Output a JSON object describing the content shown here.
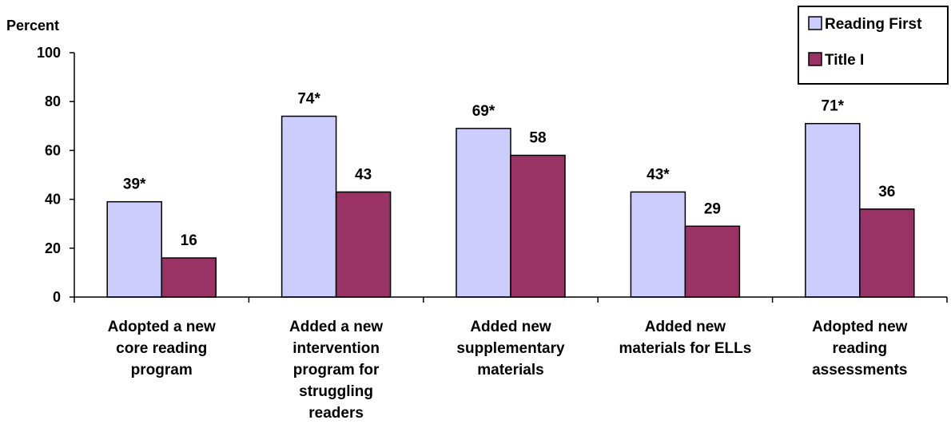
{
  "chart_data": {
    "type": "bar",
    "ylabel": "Percent",
    "ylim": [
      0,
      100
    ],
    "yticks": [
      0,
      20,
      40,
      60,
      80,
      100
    ],
    "grid": false,
    "legend_position": "top-right",
    "categories": [
      [
        "Adopted a new",
        "core reading",
        "program"
      ],
      [
        "Added a new",
        "intervention",
        "program for",
        "struggling",
        "readers"
      ],
      [
        "Added new",
        "supplementary",
        "materials"
      ],
      [
        "Added new",
        "materials for ELLs"
      ],
      [
        "Adopted new",
        "reading",
        "assessments"
      ]
    ],
    "series": [
      {
        "name": "Reading First",
        "color": "#ccccff",
        "values": [
          39,
          74,
          69,
          43,
          71
        ],
        "labels": [
          "39*",
          "74*",
          "69*",
          "43*",
          "71*"
        ]
      },
      {
        "name": "Title I",
        "color": "#993366",
        "values": [
          16,
          43,
          58,
          29,
          36
        ],
        "labels": [
          "16",
          "43",
          "58",
          "29",
          "36"
        ]
      }
    ]
  }
}
